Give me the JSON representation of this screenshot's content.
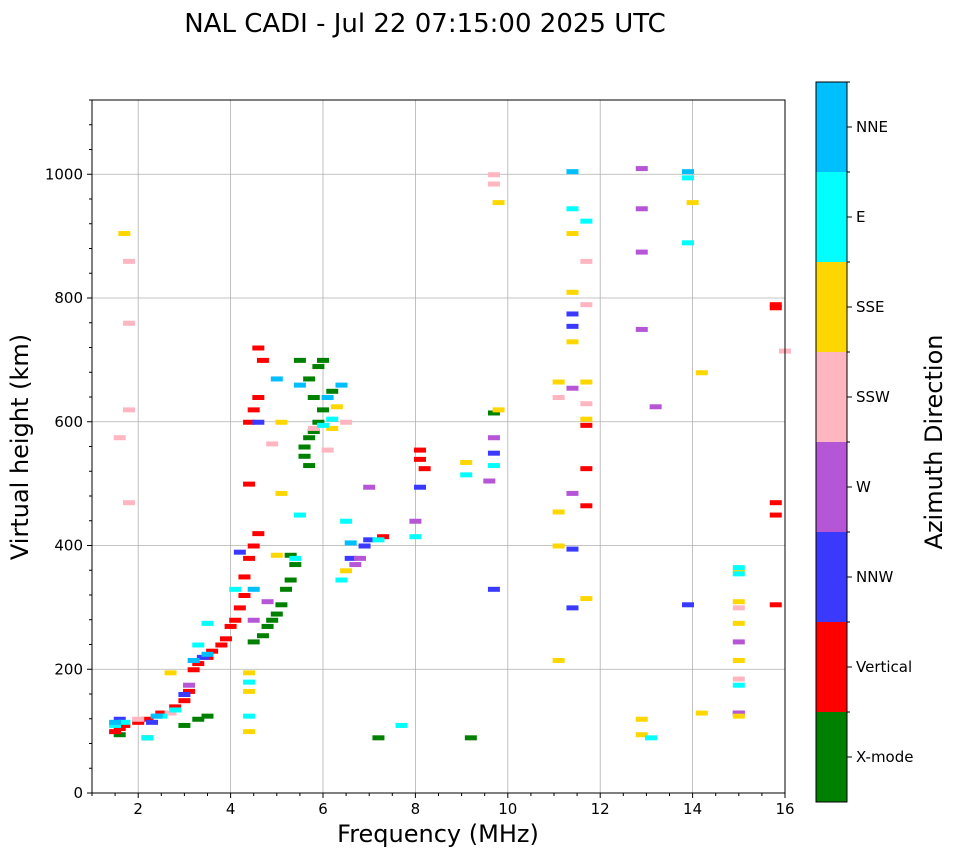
{
  "chart_data": {
    "type": "scatter",
    "title": "NAL CADI - Jul 22 07:15:00 2025 UTC",
    "xlabel": "Frequency (MHz)",
    "ylabel": "Virtual height (km)",
    "xlim": [
      1,
      16
    ],
    "ylim": [
      0,
      1120
    ],
    "xticks": [
      "2",
      "4",
      "6",
      "8",
      "10",
      "12",
      "14",
      "16"
    ],
    "yticks": [
      "0",
      "200",
      "400",
      "600",
      "800",
      "1000"
    ],
    "grid": true,
    "colorbar": {
      "label": "Azimuth Direction",
      "categories": [
        {
          "name": "X-mode",
          "color": "#008000"
        },
        {
          "name": "Vertical",
          "color": "#ff0000"
        },
        {
          "name": "NNW",
          "color": "#3a3aff"
        },
        {
          "name": "W",
          "color": "#b556d6"
        },
        {
          "name": "SSW",
          "color": "#ffb6c1"
        },
        {
          "name": "SSE",
          "color": "#ffd700"
        },
        {
          "name": "E",
          "color": "#00ffff"
        },
        {
          "name": "NNE",
          "color": "#00bfff"
        }
      ]
    },
    "series": [
      {
        "name": "X-mode",
        "points": [
          [
            1.6,
            95
          ],
          [
            2.2,
            90
          ],
          [
            3.0,
            110
          ],
          [
            3.3,
            120
          ],
          [
            3.5,
            125
          ],
          [
            4.5,
            245
          ],
          [
            4.7,
            255
          ],
          [
            4.8,
            270
          ],
          [
            4.9,
            280
          ],
          [
            5.0,
            290
          ],
          [
            5.1,
            305
          ],
          [
            5.2,
            330
          ],
          [
            5.3,
            345
          ],
          [
            5.4,
            370
          ],
          [
            5.3,
            385
          ],
          [
            5.6,
            560
          ],
          [
            5.7,
            575
          ],
          [
            5.8,
            585
          ],
          [
            5.9,
            600
          ],
          [
            6.0,
            620
          ],
          [
            5.8,
            640
          ],
          [
            5.7,
            670
          ],
          [
            5.5,
            700
          ],
          [
            5.9,
            690
          ],
          [
            6.2,
            650
          ],
          [
            5.7,
            530
          ],
          [
            5.6,
            545
          ],
          [
            7.2,
            90
          ],
          [
            9.2,
            90
          ],
          [
            9.7,
            615
          ],
          [
            6.0,
            700
          ]
        ]
      },
      {
        "name": "Vertical",
        "points": [
          [
            1.5,
            100
          ],
          [
            1.6,
            105
          ],
          [
            1.7,
            110
          ],
          [
            2.0,
            115
          ],
          [
            2.2,
            120
          ],
          [
            2.5,
            130
          ],
          [
            2.8,
            140
          ],
          [
            3.0,
            150
          ],
          [
            3.1,
            165
          ],
          [
            3.2,
            200
          ],
          [
            3.3,
            210
          ],
          [
            3.5,
            220
          ],
          [
            3.6,
            230
          ],
          [
            3.8,
            240
          ],
          [
            3.9,
            250
          ],
          [
            4.0,
            270
          ],
          [
            4.1,
            280
          ],
          [
            4.2,
            300
          ],
          [
            4.3,
            320
          ],
          [
            4.3,
            350
          ],
          [
            4.4,
            380
          ],
          [
            4.5,
            400
          ],
          [
            4.6,
            420
          ],
          [
            4.4,
            500
          ],
          [
            4.4,
            600
          ],
          [
            4.5,
            620
          ],
          [
            4.6,
            640
          ],
          [
            4.7,
            700
          ],
          [
            4.6,
            720
          ],
          [
            7.3,
            415
          ],
          [
            8.1,
            555
          ],
          [
            8.1,
            540
          ],
          [
            8.2,
            525
          ],
          [
            11.7,
            465
          ],
          [
            11.7,
            525
          ],
          [
            11.7,
            595
          ],
          [
            15.8,
            305
          ],
          [
            15.8,
            450
          ],
          [
            15.8,
            470
          ],
          [
            15.8,
            785
          ],
          [
            15.8,
            790
          ]
        ]
      },
      {
        "name": "NNW",
        "points": [
          [
            1.6,
            120
          ],
          [
            2.3,
            115
          ],
          [
            3.0,
            160
          ],
          [
            3.4,
            220
          ],
          [
            4.2,
            390
          ],
          [
            4.6,
            600
          ],
          [
            6.6,
            380
          ],
          [
            6.9,
            400
          ],
          [
            7.0,
            410
          ],
          [
            8.1,
            495
          ],
          [
            9.7,
            330
          ],
          [
            9.7,
            550
          ],
          [
            11.4,
            300
          ],
          [
            11.4,
            395
          ],
          [
            11.4,
            755
          ],
          [
            11.4,
            775
          ],
          [
            13.9,
            305
          ],
          [
            15.0,
            130
          ]
        ]
      },
      {
        "name": "W",
        "points": [
          [
            3.1,
            175
          ],
          [
            4.5,
            280
          ],
          [
            4.8,
            310
          ],
          [
            6.7,
            370
          ],
          [
            6.8,
            380
          ],
          [
            7.0,
            495
          ],
          [
            8.0,
            440
          ],
          [
            9.6,
            505
          ],
          [
            9.7,
            575
          ],
          [
            11.4,
            485
          ],
          [
            11.4,
            655
          ],
          [
            12.9,
            750
          ],
          [
            12.9,
            875
          ],
          [
            12.9,
            945
          ],
          [
            12.9,
            1010
          ],
          [
            13.2,
            625
          ],
          [
            15.0,
            245
          ],
          [
            15.0,
            130
          ]
        ]
      },
      {
        "name": "SSW",
        "points": [
          [
            1.8,
            470
          ],
          [
            1.8,
            620
          ],
          [
            1.8,
            760
          ],
          [
            1.8,
            860
          ],
          [
            1.6,
            575
          ],
          [
            2.0,
            120
          ],
          [
            2.7,
            130
          ],
          [
            4.9,
            565
          ],
          [
            5.8,
            590
          ],
          [
            6.1,
            555
          ],
          [
            6.5,
            600
          ],
          [
            9.7,
            985
          ],
          [
            9.7,
            1000
          ],
          [
            11.1,
            640
          ],
          [
            11.7,
            630
          ],
          [
            11.7,
            790
          ],
          [
            11.7,
            860
          ],
          [
            15.0,
            185
          ],
          [
            15.0,
            300
          ],
          [
            16.0,
            715
          ]
        ]
      },
      {
        "name": "SSE",
        "points": [
          [
            1.7,
            905
          ],
          [
            2.7,
            195
          ],
          [
            4.4,
            100
          ],
          [
            4.4,
            165
          ],
          [
            4.4,
            195
          ],
          [
            5.0,
            385
          ],
          [
            5.1,
            485
          ],
          [
            5.1,
            600
          ],
          [
            6.2,
            590
          ],
          [
            6.3,
            625
          ],
          [
            6.5,
            360
          ],
          [
            9.1,
            535
          ],
          [
            9.8,
            620
          ],
          [
            9.8,
            955
          ],
          [
            11.1,
            215
          ],
          [
            11.1,
            400
          ],
          [
            11.1,
            455
          ],
          [
            11.1,
            665
          ],
          [
            11.4,
            730
          ],
          [
            11.4,
            810
          ],
          [
            11.4,
            905
          ],
          [
            11.7,
            315
          ],
          [
            11.7,
            605
          ],
          [
            11.7,
            665
          ],
          [
            12.9,
            95
          ],
          [
            12.9,
            120
          ],
          [
            14.0,
            955
          ],
          [
            14.2,
            130
          ],
          [
            14.2,
            680
          ],
          [
            15.0,
            125
          ],
          [
            15.0,
            215
          ],
          [
            15.0,
            275
          ],
          [
            15.0,
            310
          ],
          [
            15.0,
            360
          ]
        ]
      },
      {
        "name": "E",
        "points": [
          [
            1.5,
            110
          ],
          [
            1.7,
            115
          ],
          [
            2.2,
            90
          ],
          [
            2.5,
            125
          ],
          [
            2.8,
            135
          ],
          [
            3.3,
            240
          ],
          [
            3.5,
            275
          ],
          [
            4.1,
            330
          ],
          [
            4.4,
            125
          ],
          [
            4.4,
            180
          ],
          [
            5.4,
            380
          ],
          [
            5.5,
            450
          ],
          [
            6.0,
            595
          ],
          [
            6.2,
            605
          ],
          [
            6.5,
            440
          ],
          [
            6.4,
            345
          ],
          [
            7.2,
            410
          ],
          [
            7.7,
            110
          ],
          [
            8.0,
            415
          ],
          [
            9.1,
            515
          ],
          [
            9.7,
            530
          ],
          [
            11.4,
            945
          ],
          [
            11.7,
            925
          ],
          [
            13.1,
            90
          ],
          [
            13.9,
            890
          ],
          [
            13.9,
            995
          ],
          [
            15.0,
            175
          ],
          [
            15.0,
            355
          ],
          [
            15.0,
            365
          ]
        ]
      },
      {
        "name": "NNE",
        "points": [
          [
            1.5,
            115
          ],
          [
            2.4,
            125
          ],
          [
            3.2,
            215
          ],
          [
            3.5,
            225
          ],
          [
            4.5,
            330
          ],
          [
            5.0,
            670
          ],
          [
            5.5,
            660
          ],
          [
            6.1,
            640
          ],
          [
            6.4,
            660
          ],
          [
            6.6,
            405
          ],
          [
            11.4,
            1005
          ],
          [
            13.9,
            1005
          ]
        ]
      }
    ]
  }
}
